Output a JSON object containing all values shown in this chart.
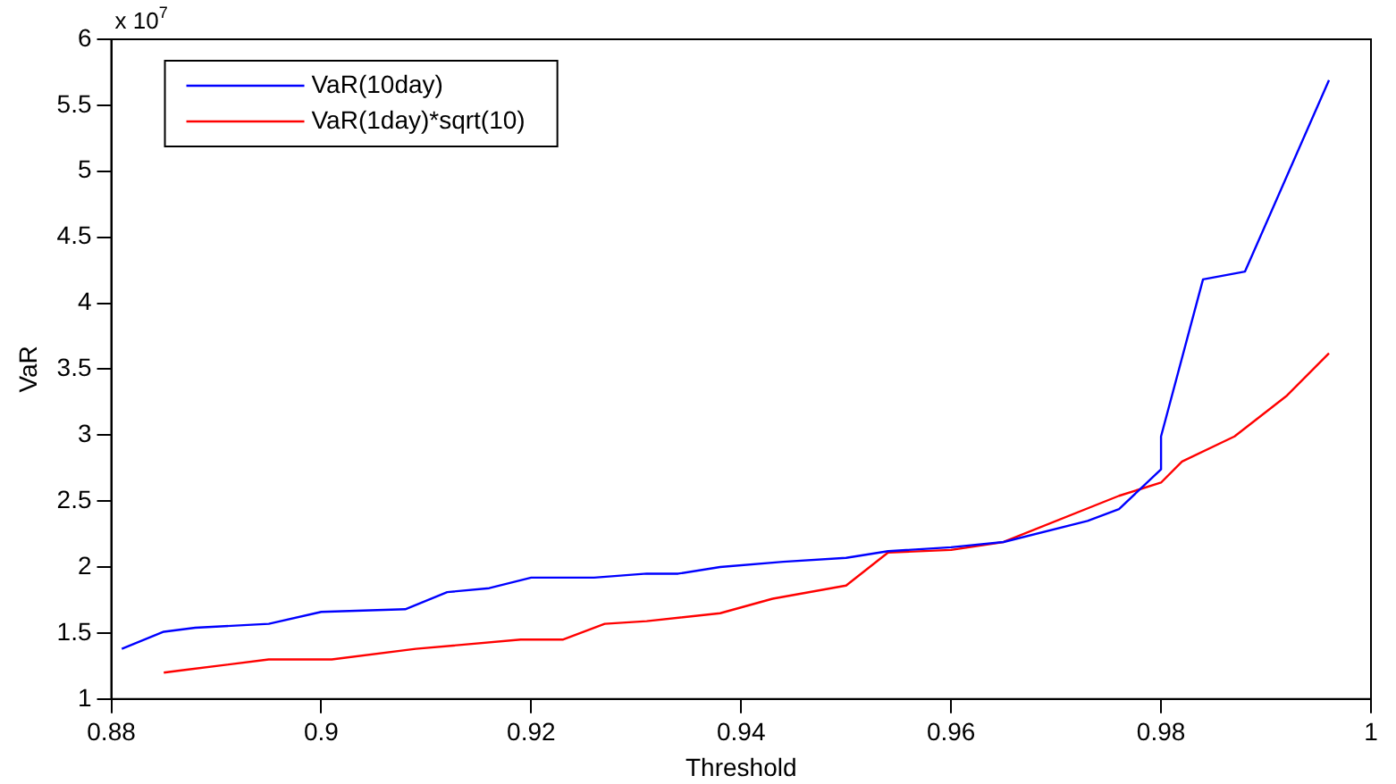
{
  "chart_data": {
    "type": "line",
    "xlabel": "Threshold",
    "ylabel": "VaR",
    "annotations": [
      "x 10$^{7}$"
    ],
    "legend": "top left",
    "grid": false,
    "marker": "none",
    "line_style": "solid",
    "xlim": [
      0.88,
      1
    ],
    "xticks": [
      0.88,
      0.9,
      0.92,
      0.94,
      0.96,
      0.98,
      1
    ],
    "ylim": [
      1,
      6
    ],
    "yticks": [
      1,
      1.5,
      2,
      2.5,
      3,
      3.5,
      4,
      4.5,
      5,
      5.5,
      6
    ],
    "series": [
      {
        "name": "VaR(10day)",
        "color": "#0000ff",
        "x": [
          0.881,
          0.885,
          0.888,
          0.895,
          0.9,
          0.908,
          0.912,
          0.916,
          0.92,
          0.926,
          0.931,
          0.934,
          0.938,
          0.944,
          0.95,
          0.954,
          0.96,
          0.965,
          0.973,
          0.976,
          0.98,
          0.98,
          0.984,
          0.988,
          0.996
        ],
        "values": [
          1.38,
          1.51,
          1.54,
          1.57,
          1.66,
          1.68,
          1.81,
          1.84,
          1.92,
          1.92,
          1.95,
          1.95,
          2.0,
          2.04,
          2.07,
          2.12,
          2.15,
          2.19,
          2.35,
          2.44,
          2.74,
          2.99,
          4.18,
          4.24,
          5.69
        ]
      },
      {
        "name": "VaR(1day)*sqrt(10)",
        "color": "#ff0000",
        "x": [
          0.885,
          0.887,
          0.895,
          0.901,
          0.909,
          0.919,
          0.923,
          0.927,
          0.931,
          0.938,
          0.943,
          0.95,
          0.954,
          0.96,
          0.965,
          0.976,
          0.98,
          0.982,
          0.987,
          0.992,
          0.996
        ],
        "values": [
          1.2,
          1.22,
          1.3,
          1.3,
          1.38,
          1.45,
          1.45,
          1.57,
          1.59,
          1.65,
          1.76,
          1.86,
          2.11,
          2.13,
          2.19,
          2.54,
          2.64,
          2.8,
          2.99,
          3.3,
          3.62
        ]
      }
    ]
  }
}
